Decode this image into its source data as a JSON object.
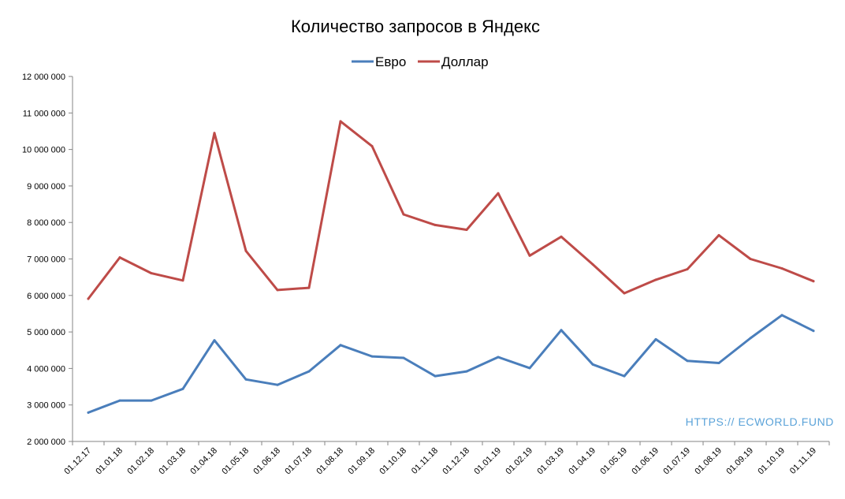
{
  "chart_data": {
    "type": "line",
    "title": "Количество запросов в Яндекс",
    "xlabel": "",
    "ylabel": "",
    "categories": [
      "01.12.17",
      "01.01.18",
      "01.02.18",
      "01.03.18",
      "01.04.18",
      "01.05.18",
      "01.06.18",
      "01.07.18",
      "01.08.18",
      "01.09.18",
      "01.10.18",
      "01.11.18",
      "01.12.18",
      "01.01.19",
      "01.02.19",
      "01.03.19",
      "01.04.19",
      "01.05.19",
      "01.06.19",
      "01.07.19",
      "01.08.19",
      "01.09.19",
      "01.10.19",
      "01.11.19"
    ],
    "ylim": [
      2000000,
      12000000
    ],
    "yticks": [
      2000000,
      3000000,
      4000000,
      5000000,
      6000000,
      7000000,
      8000000,
      9000000,
      10000000,
      11000000,
      12000000
    ],
    "ytick_labels": [
      "2 000 000",
      "3 000 000",
      "4 000 000",
      "5 000 000",
      "6 000 000",
      "7 000 000",
      "8 000 000",
      "9 000 000",
      "10 000 000",
      "11 000 000",
      "12 000 000"
    ],
    "grid": false,
    "legend_position": "top",
    "series": [
      {
        "name": "Евро",
        "color": "#4a7ebb",
        "values": [
          2790000,
          3120000,
          3120000,
          3440000,
          4770000,
          3700000,
          3550000,
          3920000,
          4640000,
          4330000,
          4290000,
          3790000,
          3920000,
          4310000,
          4010000,
          5050000,
          4110000,
          3790000,
          4800000,
          4210000,
          4150000,
          4830000,
          5460000,
          5030000
        ]
      },
      {
        "name": "Доллар",
        "color": "#be4b48",
        "values": [
          5910000,
          7040000,
          6610000,
          6410000,
          10450000,
          7220000,
          6150000,
          6210000,
          10770000,
          10090000,
          8220000,
          7930000,
          7800000,
          8800000,
          7090000,
          7610000,
          6850000,
          6060000,
          6430000,
          6720000,
          7650000,
          7000000,
          6740000,
          6390000
        ]
      }
    ]
  },
  "watermark": {
    "text": "HTTPS:// ECWORLD.FUND",
    "color": "#5ba3d9"
  },
  "colors": {
    "axis": "#868686"
  }
}
